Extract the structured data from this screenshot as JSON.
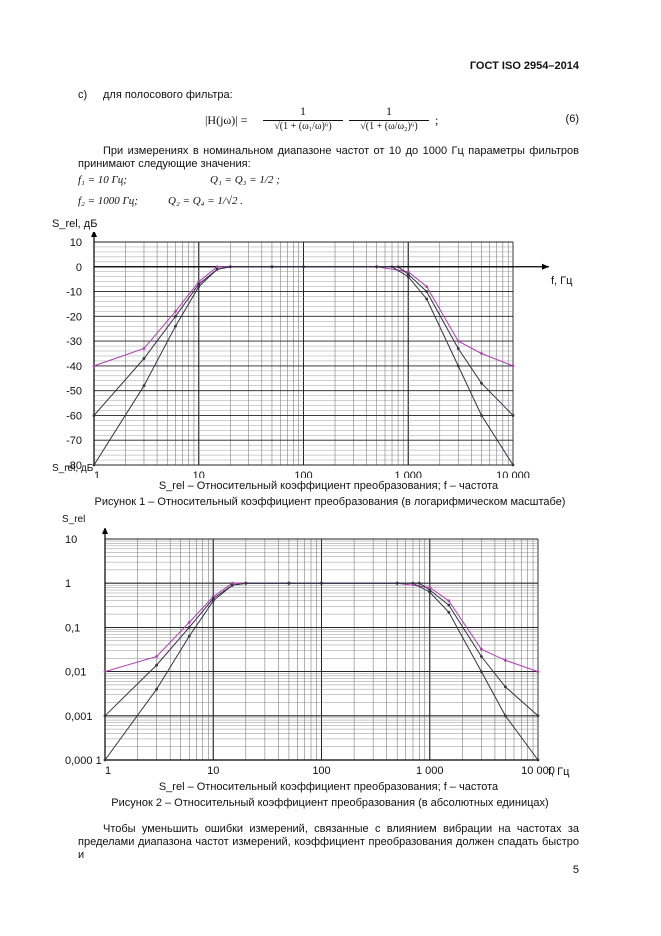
{
  "header": {
    "doc_id": "ГОСТ ISO 2954–2014"
  },
  "item_c": {
    "letter": "с)",
    "text": "для полосового фильтра:"
  },
  "formula6": {
    "lhs": "|H(jω)| =",
    "num1": "1",
    "den1": "√(1 + (ω₁/ω)⁶)",
    "num2": "1",
    "den2": "√(1 + (ω/ω₂)⁶)",
    "tail": ";",
    "number": "(6)"
  },
  "para1": "При измерениях в номинальном диапазоне частот от 10 до 1000 Гц параметры фильтров принимают следующие значения:",
  "params": {
    "f1": "f₁ = 10 Гц;",
    "q13": "Q₁ = Q₃ = 1/2 ;",
    "f2": "f₂ = 1000 Гц;",
    "q24": "Q₂ = Q₄ = 1/√2 ."
  },
  "fig1": {
    "ylabel_top": "S_rel, дБ",
    "ylabel_bottom": "S_rel, дБ",
    "xlabel": "f, Гц",
    "legend_line": "S_rel – Относительный коэффициент преобразования;  f  – частота",
    "caption": "Рисунок 1 – Относительный коэффициент преобразования (в логарифмическом масштабе)"
  },
  "fig2": {
    "ylabel_top": "S_rel",
    "xlabel": "f, Гц",
    "legend_line": "S_rel – Относительный коэффициент преобразования;  f  – частота",
    "caption": "Рисунок 2 – Относительный коэффициент преобразования (в абсолютных единицах)"
  },
  "para2": "Чтобы уменьшить ошибки измерений, связанные с влиянием вибрации на частотах за пределами диапазона частот измерений, коэффициент преобразования должен спадать быстро и",
  "page_number": "5",
  "colors": {
    "curve_dark": "#333344",
    "curve_magenta": "#b040b0"
  },
  "chart_data": [
    {
      "type": "line",
      "xscale": "log",
      "xlim": [
        1,
        10000
      ],
      "ylim": [
        -80,
        10
      ],
      "xticks": [
        "1",
        "10",
        "100",
        "1 000",
        "10 000"
      ],
      "yticks": [
        "10",
        "0",
        "-10",
        "-20",
        "-30",
        "-40",
        "-50",
        "-60",
        "-70",
        "-80"
      ],
      "grid": true,
      "series": [
        {
          "color": "#b040b0",
          "x": [
            1,
            3,
            6,
            10,
            15,
            20,
            50,
            100,
            500,
            1000,
            1500,
            3000,
            5000,
            10000
          ],
          "y": [
            -40,
            -33,
            -18,
            -6,
            0,
            0,
            0,
            0,
            0,
            -2,
            -8,
            -30,
            -35,
            -40
          ]
        },
        {
          "color": "#333344",
          "x": [
            1,
            3,
            6,
            10,
            15,
            20,
            50,
            100,
            500,
            800,
            1000,
            1500,
            3000,
            5000,
            10000
          ],
          "y": [
            -60,
            -37,
            -20,
            -7,
            -1,
            0,
            0,
            0,
            0,
            0,
            -3,
            -10,
            -33,
            -47,
            -60
          ]
        },
        {
          "color": "#333344",
          "x": [
            1,
            3,
            6,
            10,
            15,
            20,
            50,
            100,
            500,
            700,
            1000,
            1500,
            3000,
            5000,
            10000
          ],
          "y": [
            -80,
            -48,
            -24,
            -8,
            -1,
            0,
            0,
            0,
            0,
            0,
            -4,
            -13,
            -40,
            -60,
            -80
          ]
        }
      ]
    },
    {
      "type": "line",
      "xscale": "log",
      "yscale": "log",
      "xlim": [
        1,
        10000
      ],
      "ylim": [
        0.0001,
        10
      ],
      "xticks": [
        "1",
        "10",
        "100",
        "1 000",
        "10 000"
      ],
      "yticks": [
        "10",
        "1",
        "0,1",
        "0,01",
        "0,001",
        "0,000 1"
      ],
      "grid": true,
      "series": [
        {
          "color": "#b040b0",
          "x": [
            1,
            3,
            6,
            10,
            15,
            20,
            50,
            100,
            500,
            1000,
            1500,
            3000,
            5000,
            10000
          ],
          "y": [
            0.01,
            0.022,
            0.13,
            0.5,
            1,
            1,
            1,
            1,
            1,
            0.8,
            0.4,
            0.032,
            0.018,
            0.01
          ]
        },
        {
          "color": "#333344",
          "x": [
            1,
            3,
            6,
            10,
            15,
            20,
            50,
            100,
            500,
            800,
            1000,
            1500,
            3000,
            5000,
            10000
          ],
          "y": [
            0.001,
            0.014,
            0.1,
            0.45,
            0.9,
            1,
            1,
            1,
            1,
            1,
            0.7,
            0.32,
            0.022,
            0.0045,
            0.001
          ]
        },
        {
          "color": "#333344",
          "x": [
            1,
            3,
            6,
            10,
            15,
            20,
            50,
            100,
            500,
            700,
            1000,
            1500,
            3000,
            5000,
            10000
          ],
          "y": [
            0.0001,
            0.004,
            0.063,
            0.4,
            0.9,
            1,
            1,
            1,
            1,
            1,
            0.63,
            0.22,
            0.01,
            0.001,
            0.0001
          ]
        }
      ]
    }
  ]
}
